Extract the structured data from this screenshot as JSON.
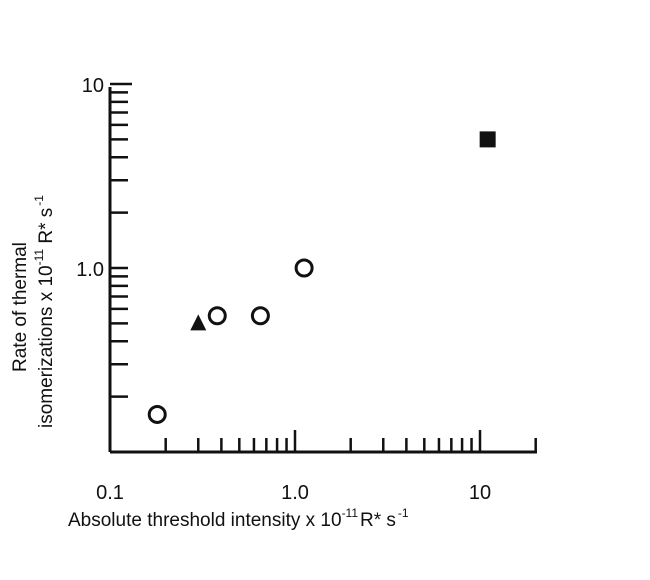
{
  "chart_data": {
    "type": "scatter",
    "title": "",
    "xlabel": {
      "prefix": "Absolute threshold intensity x 10",
      "exponent": "-11",
      "suffix": "R* s",
      "suffix_exponent": "-1"
    },
    "ylabel": {
      "line1": "Rate of thermal",
      "line2_prefix": "isomerizations x 10",
      "exponent": "-11",
      "suffix": " R* s",
      "suffix_exponent": "-1"
    },
    "x_scale": "log",
    "y_scale": "log",
    "xlim": [
      0.1,
      20
    ],
    "ylim": [
      0.1,
      10
    ],
    "x_tick_labels": [
      {
        "value": 0.1,
        "label": "0.1"
      },
      {
        "value": 1.0,
        "label": "1.0"
      },
      {
        "value": 10,
        "label": "10"
      }
    ],
    "y_tick_labels": [
      {
        "value": 1.0,
        "label": "1.0"
      },
      {
        "value": 10,
        "label": "10"
      }
    ],
    "grid": false,
    "legend": "none",
    "series": [
      {
        "marker": "circle-open",
        "points": [
          {
            "x": 0.18,
            "y": 0.16
          },
          {
            "x": 0.38,
            "y": 0.55
          },
          {
            "x": 0.65,
            "y": 0.55
          },
          {
            "x": 1.12,
            "y": 1.0
          }
        ]
      },
      {
        "marker": "triangle-filled",
        "points": [
          {
            "x": 0.3,
            "y": 0.5
          }
        ]
      },
      {
        "marker": "square-filled",
        "points": [
          {
            "x": 11.0,
            "y": 5.0
          }
        ]
      }
    ]
  }
}
